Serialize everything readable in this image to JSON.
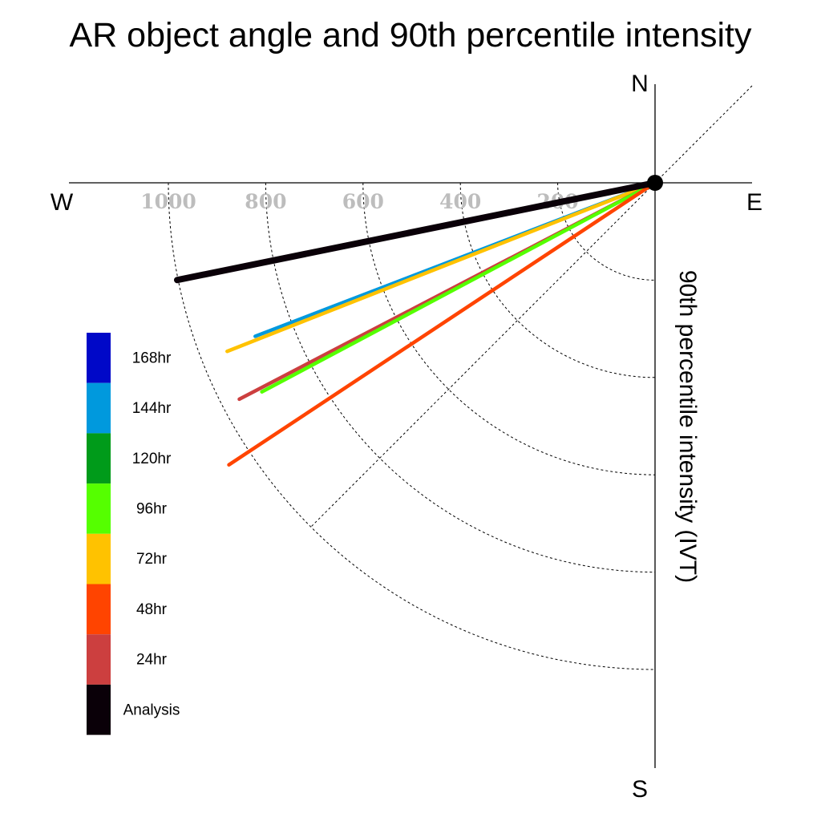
{
  "chart_data": {
    "type": "polar-vector",
    "title": "AR object angle and 90th percentile intensity",
    "ylabel": "90th percentile intensity (IVT)",
    "compass": {
      "north": "N",
      "south": "S",
      "east": "E",
      "west": "W"
    },
    "radial_ticks": [
      "200",
      "400",
      "600",
      "800",
      "1000"
    ],
    "radial_ring_values": [
      200,
      400,
      600,
      800,
      1000
    ],
    "radial_max": 1000,
    "series": [
      {
        "name": "144hr",
        "color": "#0099dd",
        "angle_deg": 21.0,
        "intensity": 880
      },
      {
        "name": "72hr",
        "color": "#ffc200",
        "angle_deg": 21.5,
        "intensity": 945
      },
      {
        "name": "24hr",
        "color": "#cc3f3f",
        "angle_deg": 27.5,
        "intensity": 963
      },
      {
        "name": "96hr",
        "color": "#55ff00",
        "angle_deg": 28.0,
        "intensity": 915
      },
      {
        "name": "48hr",
        "color": "#ff4400",
        "angle_deg": 33.5,
        "intensity": 1050
      },
      {
        "name": "Analysis",
        "color": "#0a0008",
        "angle_deg": 11.5,
        "intensity": 1002
      }
    ],
    "legend": [
      {
        "label": "168hr",
        "color": "#0008c8"
      },
      {
        "label": "144hr",
        "color": "#0099dd"
      },
      {
        "label": "120hr",
        "color": "#009b1a"
      },
      {
        "label": "96hr",
        "color": "#55ff00"
      },
      {
        "label": "72hr",
        "color": "#ffc200"
      },
      {
        "label": "48hr",
        "color": "#ff4400"
      },
      {
        "label": "24hr",
        "color": "#cc3f3f"
      },
      {
        "label": "Analysis",
        "color": "#0a0008"
      }
    ]
  }
}
